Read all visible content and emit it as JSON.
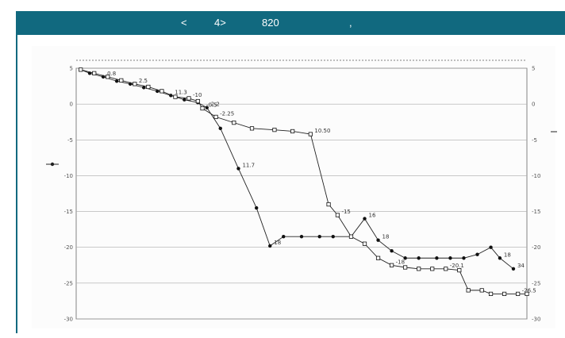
{
  "header": {
    "segments": [
      "<",
      "4>",
      "820",
      ","
    ]
  },
  "chart_data": {
    "type": "line",
    "title": "",
    "xlabel": "",
    "ylabel": "",
    "y_ticks": [
      "5",
      "0",
      "-5",
      "-10",
      "-15",
      "-20",
      "-25",
      "-30"
    ],
    "ylim": [
      -30,
      5
    ],
    "xlim": [
      0,
      100
    ],
    "grid": true,
    "series": [
      {
        "marker": "filled",
        "points": [
          [
            1,
            4.8
          ],
          [
            3,
            4.3
          ],
          [
            6,
            3.8
          ],
          [
            9,
            3.2
          ],
          [
            12,
            2.8
          ],
          [
            15,
            2.3
          ],
          [
            18,
            1.8
          ],
          [
            21,
            1.2
          ],
          [
            24,
            0.6
          ],
          [
            27,
            0.2
          ],
          [
            29,
            -0.5
          ],
          [
            32,
            -3.4
          ],
          [
            36,
            -9.0
          ],
          [
            40,
            -14.5
          ],
          [
            43,
            -19.8
          ],
          [
            46,
            -18.5
          ],
          [
            50,
            -18.5
          ],
          [
            54,
            -18.5
          ],
          [
            57,
            -18.5
          ],
          [
            61,
            -18.5
          ],
          [
            64,
            -16.0
          ],
          [
            67,
            -19.0
          ],
          [
            70,
            -20.5
          ],
          [
            73,
            -21.5
          ],
          [
            76,
            -21.5
          ],
          [
            80,
            -21.5
          ],
          [
            83,
            -21.5
          ],
          [
            86,
            -21.5
          ],
          [
            89,
            -21.0
          ],
          [
            92,
            -20.0
          ],
          [
            94,
            -21.5
          ],
          [
            97,
            -23.0
          ]
        ],
        "labels": [
          {
            "i": 2,
            "text": "0.8"
          },
          {
            "i": 7,
            "text": "11.3"
          },
          {
            "i": 10,
            "text": "2.2"
          },
          {
            "i": 12,
            "text": "11.7"
          },
          {
            "i": 14,
            "text": "18"
          },
          {
            "i": 20,
            "text": "16"
          },
          {
            "i": 21,
            "text": "18"
          },
          {
            "i": 30,
            "text": "18"
          },
          {
            "i": 31,
            "text": "34"
          }
        ]
      },
      {
        "marker": "open",
        "points": [
          [
            1,
            4.8
          ],
          [
            4,
            4.3
          ],
          [
            7,
            3.8
          ],
          [
            10,
            3.3
          ],
          [
            13,
            2.8
          ],
          [
            16,
            2.4
          ],
          [
            19,
            1.8
          ],
          [
            22,
            1.0
          ],
          [
            25,
            0.8
          ],
          [
            27,
            0.4
          ],
          [
            28,
            -0.6
          ],
          [
            31,
            -1.8
          ],
          [
            35,
            -2.6
          ],
          [
            39,
            -3.4
          ],
          [
            44,
            -3.6
          ],
          [
            48,
            -3.8
          ],
          [
            52,
            -4.2
          ],
          [
            56,
            -14.0
          ],
          [
            58,
            -15.5
          ],
          [
            61,
            -18.5
          ],
          [
            64,
            -19.5
          ],
          [
            67,
            -21.5
          ],
          [
            70,
            -22.5
          ],
          [
            73,
            -22.8
          ],
          [
            76,
            -23.0
          ],
          [
            79,
            -23.0
          ],
          [
            82,
            -23.0
          ],
          [
            85,
            -23.2
          ],
          [
            87,
            -26.0
          ],
          [
            90,
            -26.0
          ],
          [
            92,
            -26.5
          ],
          [
            95,
            -26.5
          ],
          [
            98,
            -26.5
          ],
          [
            100,
            -26.5
          ]
        ],
        "labels": [
          {
            "i": 4,
            "text": "2.5"
          },
          {
            "i": 8,
            "text": "-10"
          },
          {
            "i": 10,
            "text": "-0.5"
          },
          {
            "i": 11,
            "text": "-2.25"
          },
          {
            "i": 16,
            "text": "10.50"
          },
          {
            "i": 18,
            "text": "-15"
          },
          {
            "i": 22,
            "text": "-18"
          },
          {
            "i": 26,
            "text": "-20.1"
          },
          {
            "i": 32,
            "text": "-26.5"
          }
        ]
      }
    ]
  }
}
